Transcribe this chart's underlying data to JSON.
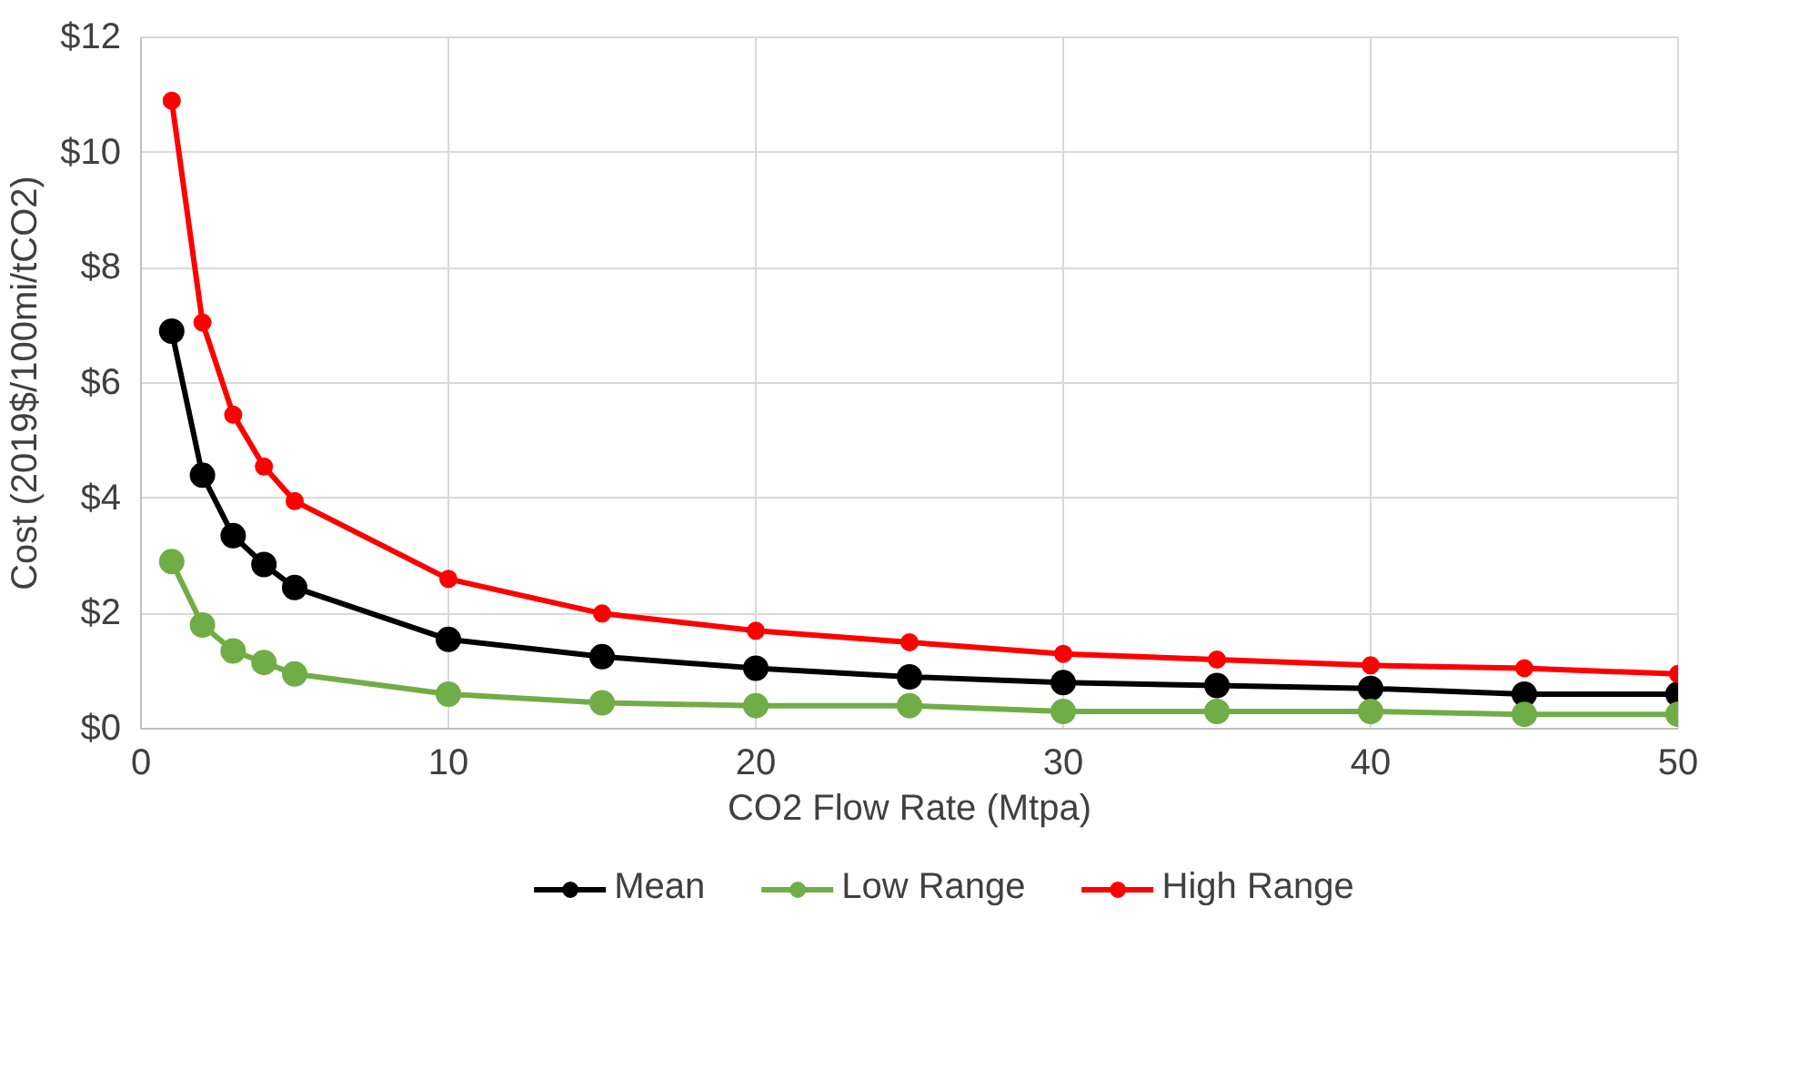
{
  "chart_data": {
    "type": "line",
    "xlabel": "CO2 Flow Rate (Mtpa)",
    "ylabel": "Cost (2019$/100mi/tCO2)",
    "x": [
      1,
      2,
      3,
      4,
      5,
      10,
      15,
      20,
      25,
      30,
      35,
      40,
      45,
      50
    ],
    "series": [
      {
        "name": "Mean",
        "color": "#000000",
        "values": [
          6.9,
          4.4,
          3.35,
          2.85,
          2.45,
          1.55,
          1.25,
          1.05,
          0.9,
          0.8,
          0.75,
          0.7,
          0.6,
          0.6
        ]
      },
      {
        "name": "Low Range",
        "color": "#70ad47",
        "values": [
          2.9,
          1.8,
          1.35,
          1.15,
          0.95,
          0.6,
          0.45,
          0.4,
          0.4,
          0.3,
          0.3,
          0.3,
          0.25,
          0.25
        ]
      },
      {
        "name": "High Range",
        "color": "#ff0000",
        "values": [
          10.9,
          7.05,
          5.45,
          4.55,
          3.95,
          2.6,
          2.0,
          1.7,
          1.5,
          1.3,
          1.2,
          1.1,
          1.05,
          0.95
        ]
      }
    ],
    "xlim": [
      0,
      50
    ],
    "xticks": [
      0,
      10,
      20,
      30,
      40,
      50
    ],
    "ylim": [
      0,
      12
    ],
    "yticks": [
      {
        "value": 0,
        "label": "$0"
      },
      {
        "value": 2,
        "label": "$2"
      },
      {
        "value": 4,
        "label": "$4"
      },
      {
        "value": 6,
        "label": "$6"
      },
      {
        "value": 8,
        "label": "$8"
      },
      {
        "value": 10,
        "label": "$10"
      },
      {
        "value": 12,
        "label": "$12"
      }
    ],
    "grid": true,
    "legend": "bottom",
    "marker": "circle",
    "line_style": "solid"
  }
}
